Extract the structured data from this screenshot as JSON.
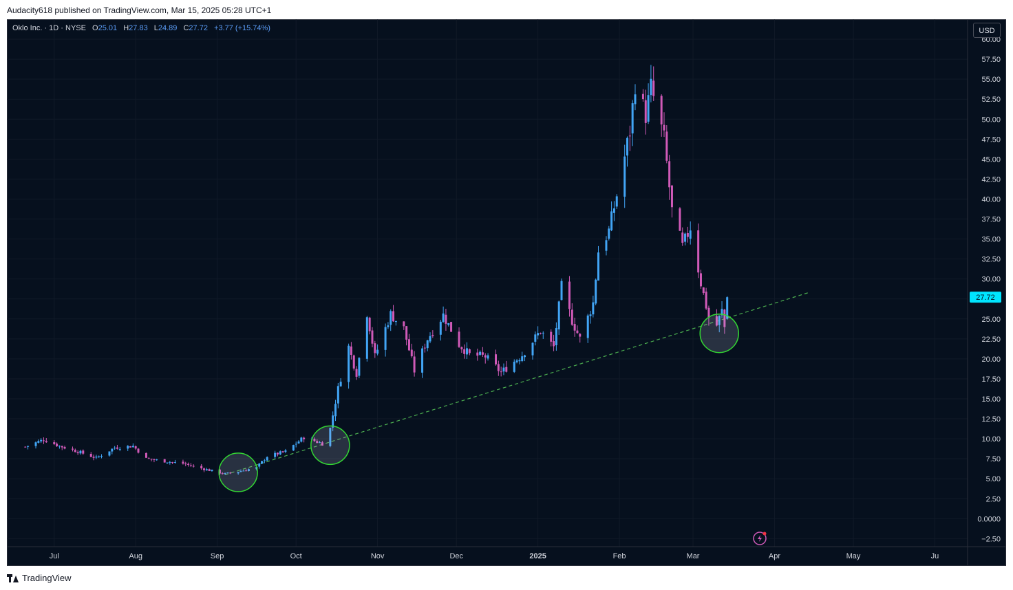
{
  "header": {
    "publish_line": "Audacity618 published on TradingView.com, Mar 15, 2025 05:28 UTC+1"
  },
  "legend": {
    "symbol": "Oklo Inc. · 1D · NYSE",
    "o_label": "O",
    "o_value": "25.01",
    "h_label": "H",
    "h_value": "27.83",
    "l_label": "L",
    "l_value": "24.89",
    "c_label": "C",
    "c_value": "27.72",
    "change": "+3.77 (+15.74%)"
  },
  "currency_button": "USD",
  "footer": {
    "brand": "TradingView"
  },
  "colors": {
    "up": "#42a5f5",
    "down": "#d05ab8",
    "trendline": "#4caf50",
    "background": "#06101e",
    "price_label": "#00e5ff"
  },
  "chart_data": {
    "type": "candlestick",
    "y_ticks": [
      "60.00",
      "57.50",
      "55.00",
      "52.50",
      "50.00",
      "47.50",
      "45.00",
      "42.50",
      "40.00",
      "37.50",
      "35.00",
      "32.50",
      "30.00",
      "27.50",
      "25.00",
      "22.50",
      "20.00",
      "17.50",
      "15.00",
      "12.50",
      "10.00",
      "7.50",
      "5.00",
      "2.50",
      "0.0000",
      "−2.50"
    ],
    "ylim": [
      -3.5,
      62.5
    ],
    "x_ticks": [
      "Jul",
      "Aug",
      "Sep",
      "Oct",
      "Nov",
      "Dec",
      "2025",
      "Feb",
      "Mar",
      "Apr",
      "May",
      "Ju"
    ],
    "last_price": "27.72",
    "trendline": {
      "style": "dashed",
      "from": [
        "2024-09-04",
        5.5
      ],
      "to": [
        "2025-04-14",
        28.3
      ]
    },
    "highlight_circles": [
      {
        "date": "2024-09-09",
        "price": 5.8
      },
      {
        "date": "2024-10-14",
        "price": 9.2
      },
      {
        "date": "2025-03-11",
        "price": 23.2
      }
    ],
    "anchors": [
      [
        "2024-06-20",
        9.0
      ],
      [
        "2024-06-27",
        9.9
      ],
      [
        "2024-07-03",
        9.1
      ],
      [
        "2024-07-10",
        8.4
      ],
      [
        "2024-07-17",
        7.6
      ],
      [
        "2024-07-24",
        8.9
      ],
      [
        "2024-07-31",
        9.1
      ],
      [
        "2024-08-05",
        7.5
      ],
      [
        "2024-08-12",
        7.2
      ],
      [
        "2024-08-19",
        6.9
      ],
      [
        "2024-08-26",
        6.3
      ],
      [
        "2024-09-04",
        5.6
      ],
      [
        "2024-09-09",
        5.9
      ],
      [
        "2024-09-16",
        6.4
      ],
      [
        "2024-09-20",
        7.8
      ],
      [
        "2024-09-27",
        8.4
      ],
      [
        "2024-10-04",
        10.2
      ],
      [
        "2024-10-11",
        9.4
      ],
      [
        "2024-10-14",
        11.3
      ],
      [
        "2024-10-17",
        16.3
      ],
      [
        "2024-10-21",
        21.5
      ],
      [
        "2024-10-24",
        18.2
      ],
      [
        "2024-10-28",
        25.8
      ],
      [
        "2024-10-31",
        20.3
      ],
      [
        "2024-11-06",
        25.6
      ],
      [
        "2024-11-11",
        23.8
      ],
      [
        "2024-11-15",
        18.5
      ],
      [
        "2024-11-20",
        22.5
      ],
      [
        "2024-11-26",
        25.5
      ],
      [
        "2024-12-02",
        21.8
      ],
      [
        "2024-12-06",
        20.5
      ],
      [
        "2024-12-12",
        20.3
      ],
      [
        "2024-12-18",
        18.3
      ],
      [
        "2024-12-26",
        20.5
      ],
      [
        "2025-01-02",
        23.5
      ],
      [
        "2025-01-07",
        21.5
      ],
      [
        "2025-01-10",
        29.0
      ],
      [
        "2025-01-14",
        24.8
      ],
      [
        "2025-01-17",
        22.5
      ],
      [
        "2025-01-22",
        27.0
      ],
      [
        "2025-01-24",
        33.5
      ],
      [
        "2025-01-28",
        36.0
      ],
      [
        "2025-01-31",
        40.5
      ],
      [
        "2025-02-05",
        48.5
      ],
      [
        "2025-02-07",
        54.5
      ],
      [
        "2025-02-11",
        50.5
      ],
      [
        "2025-02-13",
        54.0
      ],
      [
        "2025-02-18",
        47.5
      ],
      [
        "2025-02-21",
        38.5
      ],
      [
        "2025-02-25",
        34.0
      ],
      [
        "2025-02-28",
        36.5
      ],
      [
        "2025-03-04",
        29.5
      ],
      [
        "2025-03-07",
        25.2
      ],
      [
        "2025-03-10",
        24.2
      ],
      [
        "2025-03-12",
        26.0
      ],
      [
        "2025-03-13",
        23.95
      ],
      [
        "2025-03-14",
        27.72
      ]
    ]
  }
}
